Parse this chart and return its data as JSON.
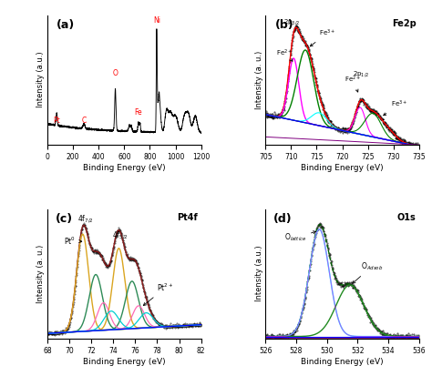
{
  "fig_width": 4.74,
  "fig_height": 4.13,
  "bg_color": "white",
  "panel_a": {
    "label": "(a)",
    "xlabel": "Binding Energy (eV)",
    "ylabel": "Intensity (a.u.)",
    "xlim": [
      0,
      1200
    ],
    "xticks": [
      0,
      200,
      400,
      600,
      800,
      1000,
      1200
    ]
  },
  "panel_b": {
    "label": "(b)",
    "title": "Fe2p",
    "xlabel": "Binding Energy (eV)",
    "ylabel": "Intensity (a. u.)",
    "xlim": [
      705,
      735
    ],
    "xticks": [
      705,
      710,
      715,
      720,
      725,
      730,
      735
    ]
  },
  "panel_c": {
    "label": "(c)",
    "title": "Pt4f",
    "xlabel": "Binding Energy (eV)",
    "ylabel": "Intensity (a. u.)",
    "xlim": [
      68,
      82
    ],
    "xticks": [
      68,
      70,
      72,
      74,
      76,
      78,
      80,
      82
    ]
  },
  "panel_d": {
    "label": "(d)",
    "title": "O1s",
    "xlabel": "Binding Energy (eV)",
    "ylabel": "Intensity (a.u.)",
    "xlim": [
      526,
      536
    ],
    "xticks": [
      526,
      528,
      530,
      532,
      534,
      536
    ]
  }
}
